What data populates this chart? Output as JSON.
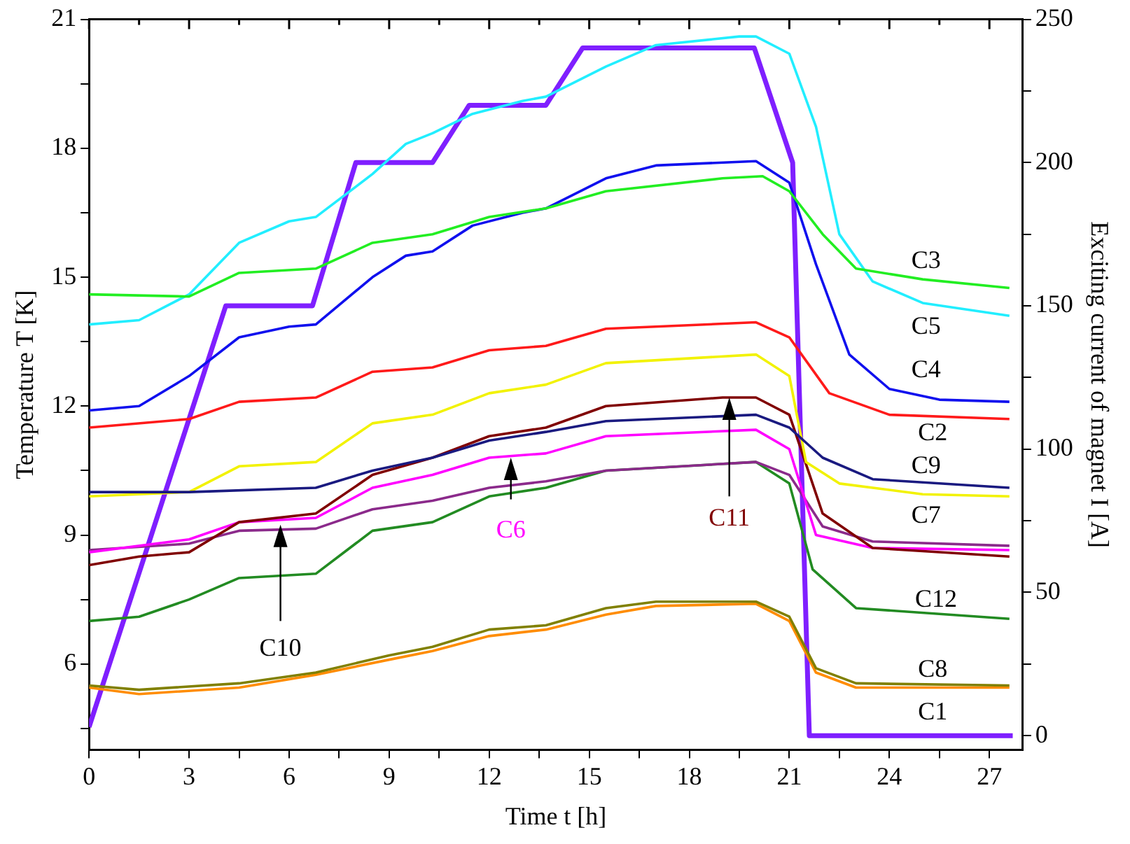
{
  "chart_data": {
    "type": "line",
    "xlabel": "Time t [h]",
    "ylabel": "Temperature T [K]",
    "y2label": "Exciting current of magnet I [A]",
    "xlim": [
      0,
      28
    ],
    "xticks": [
      0,
      {
        "value": 1.5,
        "label": null
      },
      3,
      {
        "value": 4.5,
        "label": null
      },
      6,
      {
        "value": 7.5,
        "label": null
      },
      9,
      {
        "value": 10.5,
        "label": null
      },
      12,
      {
        "value": 13.5,
        "label": null
      },
      15,
      {
        "value": 16.5,
        "label": null
      },
      18,
      {
        "value": 19.5,
        "label": null
      },
      21,
      {
        "value": 22.5,
        "label": null
      },
      24,
      {
        "value": 25.5,
        "label": null
      },
      27
    ],
    "ylim": [
      4,
      21
    ],
    "yticks": [
      {
        "value": 4.5,
        "label": null
      },
      6,
      {
        "value": 7.5,
        "label": null
      },
      9,
      {
        "value": 10.5,
        "label": null
      },
      12,
      {
        "value": 13.5,
        "label": null
      },
      15,
      {
        "value": 16.5,
        "label": null
      },
      18,
      {
        "value": 19.5,
        "label": null
      },
      21
    ],
    "y2lim": [
      -5,
      250
    ],
    "y2ticks": [
      0,
      {
        "value": 25,
        "label": null
      },
      50,
      {
        "value": 75,
        "label": null
      },
      100,
      {
        "value": 125,
        "label": null
      },
      150,
      {
        "value": 175,
        "label": null
      },
      200,
      {
        "value": 225,
        "label": null
      },
      250
    ],
    "grid": false,
    "legend": false,
    "marker": "none",
    "line_style": "solid",
    "series": [
      {
        "name": "C3",
        "color": "#22ee22",
        "x": [
          0,
          3,
          4.5,
          6.8,
          8.5,
          10.3,
          12,
          13.7,
          15.5,
          19,
          20.2,
          21,
          22,
          23,
          25,
          27.6
        ],
        "values": [
          14.6,
          14.55,
          15.1,
          15.2,
          15.8,
          16.0,
          16.4,
          16.6,
          17.0,
          17.3,
          17.35,
          17.0,
          16.0,
          15.2,
          14.95,
          14.75
        ]
      },
      {
        "name": "C5",
        "color": "#22eeff",
        "x": [
          0,
          1.5,
          3,
          4.5,
          6,
          6.8,
          8.5,
          9.5,
          10.3,
          11.5,
          13,
          13.7,
          15.5,
          17,
          19.5,
          20,
          21,
          21.8,
          22.5,
          23.5,
          25,
          27.6
        ],
        "values": [
          13.9,
          14.0,
          14.6,
          15.8,
          16.3,
          16.4,
          17.4,
          18.1,
          18.35,
          18.8,
          19.1,
          19.2,
          19.9,
          20.4,
          20.6,
          20.6,
          20.2,
          18.5,
          16.0,
          14.9,
          14.4,
          14.1
        ]
      },
      {
        "name": "C4",
        "color": "#1010ee",
        "x": [
          0,
          1.5,
          3,
          4.5,
          6,
          6.8,
          8.5,
          9.5,
          10.3,
          11.5,
          13,
          13.7,
          15.5,
          17,
          20,
          21,
          21.8,
          22.8,
          24,
          25.5,
          27.6
        ],
        "values": [
          11.9,
          12.0,
          12.7,
          13.6,
          13.85,
          13.9,
          15.0,
          15.5,
          15.6,
          16.2,
          16.5,
          16.6,
          17.3,
          17.6,
          17.7,
          17.2,
          15.3,
          13.2,
          12.4,
          12.15,
          12.1
        ]
      },
      {
        "name": "C2",
        "color": "#ff1a1a",
        "x": [
          0,
          3,
          4.5,
          6.8,
          8.5,
          10.3,
          12,
          13.7,
          15.5,
          20,
          21,
          22.2,
          24,
          27.6
        ],
        "values": [
          11.5,
          11.7,
          12.1,
          12.2,
          12.8,
          12.9,
          13.3,
          13.4,
          13.8,
          13.95,
          13.6,
          12.3,
          11.8,
          11.7
        ]
      },
      {
        "name": "C9",
        "color": "#1a1a80",
        "x": [
          0,
          3,
          6.8,
          8.5,
          10.3,
          12,
          13.7,
          15.5,
          20,
          21,
          22,
          23.5,
          27.6
        ],
        "values": [
          10.0,
          10.0,
          10.1,
          10.5,
          10.8,
          11.2,
          11.4,
          11.65,
          11.8,
          11.5,
          10.8,
          10.3,
          10.1
        ]
      },
      {
        "name": "C7",
        "color": "#f2f200",
        "x": [
          0,
          3,
          4.5,
          6.8,
          8.5,
          10.3,
          12,
          13.7,
          15.5,
          20,
          21,
          21.5,
          22.5,
          25,
          27.6
        ],
        "values": [
          9.9,
          10.0,
          10.6,
          10.7,
          11.6,
          11.8,
          12.3,
          12.5,
          13.0,
          13.2,
          12.7,
          10.7,
          10.2,
          9.95,
          9.9
        ]
      },
      {
        "name": "C11",
        "color": "#800000",
        "x": [
          0,
          1.5,
          3,
          4.5,
          6.8,
          8.5,
          10.3,
          12,
          13.7,
          15.5,
          19,
          20,
          21,
          22,
          23.5,
          27.6
        ],
        "values": [
          8.3,
          8.5,
          8.6,
          9.3,
          9.5,
          10.4,
          10.8,
          11.3,
          11.5,
          12.0,
          12.2,
          12.2,
          11.8,
          9.5,
          8.7,
          8.5
        ]
      },
      {
        "name": "C6",
        "color": "#ff00ff",
        "x": [
          0,
          3,
          4.5,
          6.8,
          8.5,
          10.3,
          12,
          13.7,
          15.5,
          20,
          21,
          21.8,
          23.5,
          27.6
        ],
        "values": [
          8.6,
          8.9,
          9.3,
          9.4,
          10.1,
          10.4,
          10.8,
          10.9,
          11.3,
          11.45,
          11.0,
          9.0,
          8.7,
          8.65
        ]
      },
      {
        "name": "C10",
        "color": "#8b2a8b",
        "x": [
          0,
          3,
          4.5,
          6.8,
          8.5,
          10.3,
          12,
          13.7,
          15.5,
          20,
          21,
          22,
          23.5,
          27.6
        ],
        "values": [
          8.65,
          8.8,
          9.1,
          9.15,
          9.6,
          9.8,
          10.1,
          10.25,
          10.5,
          10.7,
          10.4,
          9.2,
          8.85,
          8.75
        ]
      },
      {
        "name": "C12",
        "color": "#228b22",
        "x": [
          0,
          1.5,
          3,
          4.5,
          6.8,
          8.5,
          10.3,
          12,
          13.7,
          15.5,
          20,
          21,
          21.7,
          23,
          27.6
        ],
        "values": [
          7.0,
          7.1,
          7.5,
          8.0,
          8.1,
          9.1,
          9.3,
          9.9,
          10.1,
          10.5,
          10.7,
          10.2,
          8.2,
          7.3,
          7.05
        ]
      },
      {
        "name": "C8",
        "color": "#808000",
        "x": [
          0,
          1.5,
          4.5,
          6.8,
          9,
          10.3,
          12,
          13.7,
          15.5,
          17,
          20,
          21,
          21.8,
          23,
          27.6
        ],
        "values": [
          5.5,
          5.4,
          5.55,
          5.8,
          6.2,
          6.4,
          6.8,
          6.9,
          7.3,
          7.45,
          7.45,
          7.1,
          5.9,
          5.55,
          5.5
        ]
      },
      {
        "name": "C1",
        "color": "#ff8c00",
        "x": [
          0,
          1.5,
          4.5,
          6.8,
          9,
          10.3,
          12,
          13.7,
          15.5,
          17,
          20,
          21,
          21.8,
          23,
          27.6
        ],
        "values": [
          5.45,
          5.3,
          5.45,
          5.75,
          6.1,
          6.3,
          6.65,
          6.8,
          7.15,
          7.35,
          7.4,
          7.0,
          5.8,
          5.45,
          5.45
        ]
      },
      {
        "color": "#7f1fff",
        "axis": "y2",
        "x": [
          0,
          4.1,
          6.7,
          8.0,
          10.3,
          11.4,
          13.7,
          14.8,
          19.95,
          21.1,
          21.6,
          27.7
        ],
        "values": [
          3,
          150,
          150,
          200,
          200,
          220,
          220,
          240,
          240,
          200,
          0,
          0
        ]
      }
    ]
  }
}
